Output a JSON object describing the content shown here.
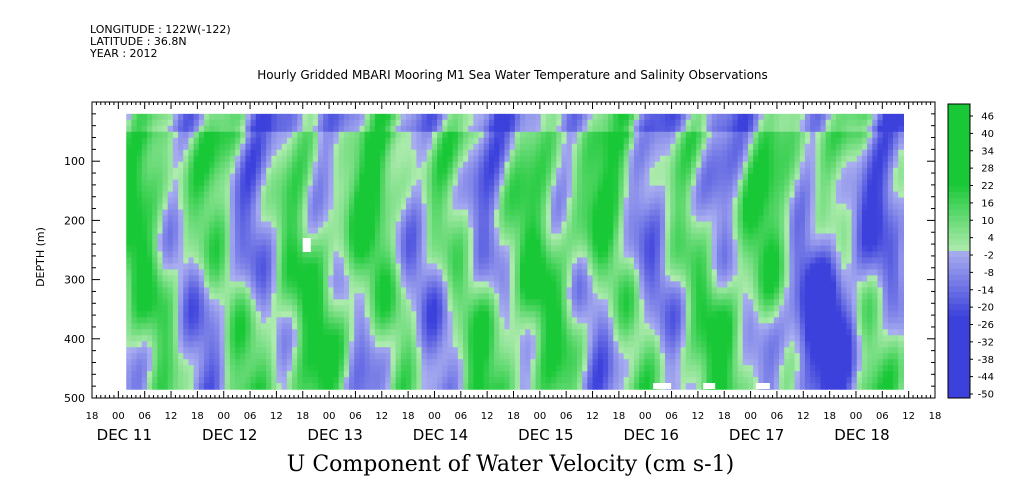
{
  "meta": {
    "longitude": "LONGITUDE : 122W(-122)",
    "latitude": "LATITUDE : 36.8N",
    "year": "YEAR : 2012"
  },
  "chart_data": {
    "type": "heatmap",
    "title": "Hourly Gridded MBARI Mooring M1 Sea Water Temperature and Salinity Observations",
    "xlabel": "U Component of Water Velocity (cm s-1)",
    "ylabel": "DEPTH (m)",
    "ylim": [
      500,
      0
    ],
    "y_ticks": [
      100,
      200,
      300,
      400,
      500
    ],
    "x_hour_labels": [
      "18",
      "00",
      "06",
      "12",
      "18",
      "00",
      "06",
      "12",
      "18",
      "00",
      "06",
      "12",
      "18",
      "00",
      "06",
      "12",
      "18",
      "00",
      "06",
      "12",
      "18",
      "00",
      "06",
      "12",
      "18",
      "00",
      "06",
      "12",
      "18",
      "00",
      "06",
      "12",
      "18"
    ],
    "date_labels": [
      "DEC 11",
      "DEC 12",
      "DEC 13",
      "DEC 14",
      "DEC 15",
      "DEC 16",
      "DEC 17",
      "DEC 18"
    ],
    "colorbar_labels": [
      "46",
      "40",
      "34",
      "28",
      "22",
      "16",
      "10",
      "4",
      "-2",
      "-8",
      "-14",
      "-20",
      "-26",
      "-32",
      "-38",
      "-44",
      "-50"
    ],
    "colorbar_range": [
      -50,
      50
    ],
    "data_extent": {
      "depth_range_m": [
        20,
        485
      ]
    },
    "pattern": "alternating vertical bands of positive (green, ~4 to 25 cm/s) and negative (blue, ~-2 to -20 cm/s) velocity; strongest negatives near DEC 17 18h to DEC 18 06h below 300 m",
    "colors": {
      "positive": "#22cc44",
      "negative": "#8f93ea",
      "strong_negative": "#3b44d0"
    }
  }
}
